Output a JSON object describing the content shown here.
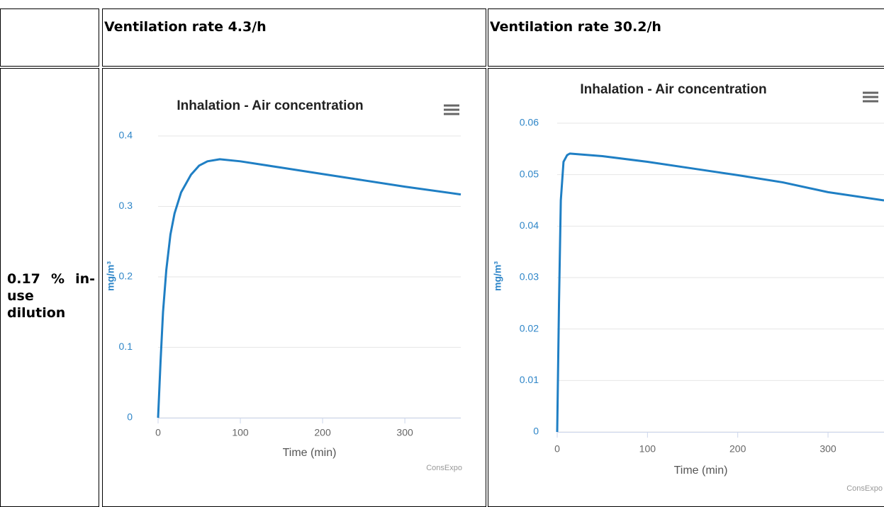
{
  "table": {
    "header": [
      "Ventilation rate 4.3/h",
      "Ventilation rate 30.2/h"
    ],
    "row_label": "0.17 % in-use dilution"
  },
  "chart_data": [
    {
      "type": "line",
      "title": "Inhalation - Air concentration",
      "xlabel": "Time (min)",
      "ylabel": "mg/m³",
      "credit": "ConsExpo",
      "xlim": [
        0,
        368
      ],
      "xticks": [
        0,
        100,
        200,
        300
      ],
      "ylim": [
        0,
        0.4
      ],
      "yticks": [
        0,
        0.1,
        0.2,
        0.3,
        0.4
      ],
      "grid": true,
      "x": [
        0,
        3,
        6,
        10,
        15,
        20,
        28,
        40,
        50,
        60,
        75,
        100,
        150,
        200,
        250,
        300,
        368
      ],
      "series": [
        {
          "name": "Air concentration",
          "color": "#1f7fc4",
          "values": [
            0,
            0.08,
            0.15,
            0.21,
            0.26,
            0.29,
            0.32,
            0.345,
            0.358,
            0.364,
            0.367,
            0.364,
            0.355,
            0.346,
            0.337,
            0.328,
            0.317
          ]
        }
      ]
    },
    {
      "type": "line",
      "title": "Inhalation - Air concentration",
      "xlabel": "Time (min)",
      "ylabel": "mg/m³",
      "credit": "ConsExpo",
      "xlim": [
        0,
        362
      ],
      "xticks": [
        0,
        100,
        200,
        300
      ],
      "ylim": [
        0,
        0.06
      ],
      "yticks": [
        0,
        0.01,
        0.02,
        0.03,
        0.04,
        0.05,
        0.06
      ],
      "grid": true,
      "x": [
        0,
        2,
        4,
        7,
        11,
        14,
        50,
        100,
        150,
        200,
        250,
        300,
        362
      ],
      "series": [
        {
          "name": "Air concentration",
          "color": "#1f7fc4",
          "values": [
            0,
            0.025,
            0.045,
            0.0525,
            0.0538,
            0.0541,
            0.0536,
            0.0525,
            0.0512,
            0.0499,
            0.0485,
            0.0466,
            0.045
          ]
        }
      ]
    }
  ]
}
